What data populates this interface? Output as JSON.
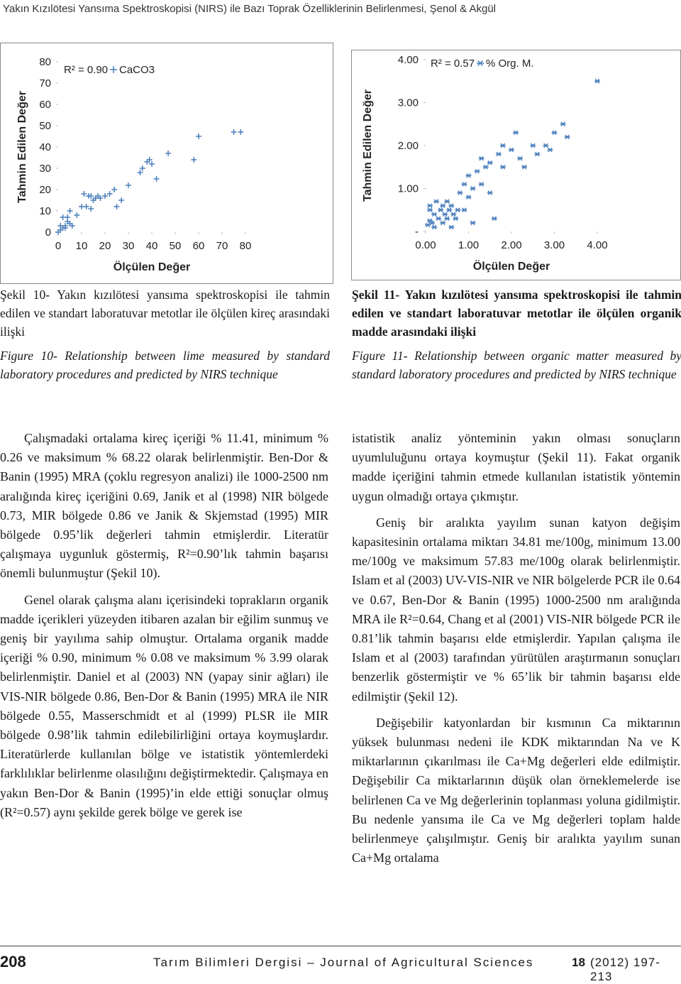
{
  "header": {
    "running_title": "Yakın Kızılötesi Yansıma Spektroskopisi (NIRS) ile Bazı Toprak Özelliklerinin Belirlenmesi, Şenol & Akgül"
  },
  "chart_data": [
    {
      "type": "scatter",
      "x_label": "Ölçülen Değer",
      "y_label": "Tahmin Edilen Değer",
      "annotation": "R² = 0.90",
      "xlim": [
        0,
        80
      ],
      "xticks": [
        0,
        10,
        20,
        30,
        40,
        50,
        60,
        70,
        80
      ],
      "ylim": [
        0,
        80
      ],
      "yticks": [
        0,
        10,
        20,
        30,
        40,
        50,
        60,
        70,
        80
      ],
      "grid": false,
      "series": [
        {
          "name": "CaCO3",
          "color": "#4a7ebb",
          "marker": "plus",
          "x": [
            0,
            1,
            2,
            3,
            4,
            2,
            5,
            6,
            3,
            1,
            8,
            5,
            4,
            10,
            11,
            13,
            14,
            15,
            16,
            12,
            14,
            17,
            18,
            20,
            22,
            25,
            27,
            24,
            30,
            35,
            36,
            38,
            39,
            40,
            42,
            47,
            58,
            60,
            75,
            78
          ],
          "y": [
            0,
            1,
            2,
            3,
            5,
            7,
            4,
            3,
            2,
            3,
            8,
            10,
            7,
            12,
            18,
            17,
            17,
            15,
            16,
            12,
            11,
            17,
            16,
            17,
            18,
            12,
            15,
            20,
            22,
            28,
            30,
            33,
            34,
            32,
            25,
            37,
            34,
            45,
            47,
            47
          ]
        }
      ]
    },
    {
      "type": "scatter",
      "x_label": "Ölçülen Değer",
      "y_label": "Tahmin Edilen Değer",
      "annotation": "R² = 0.57",
      "xlim": [
        0,
        4
      ],
      "xticks": [
        {
          "value": 0,
          "label": "0.00"
        },
        {
          "value": 1,
          "label": "1.00"
        },
        {
          "value": 2,
          "label": "2.00"
        },
        {
          "value": 3,
          "label": "3.00"
        },
        {
          "value": 4,
          "label": "4.00"
        }
      ],
      "ylim": [
        0,
        4
      ],
      "yticks": [
        {
          "value": 0,
          "label": "-"
        },
        {
          "value": 1,
          "label": "1.00"
        },
        {
          "value": 2,
          "label": "2.00"
        },
        {
          "value": 3,
          "label": "3.00"
        },
        {
          "value": 4,
          "label": "4.00"
        }
      ],
      "grid": false,
      "series": [
        {
          "name": "% Org. M.",
          "color": "#4a7ebb",
          "marker": "asterisk",
          "x": [
            0.1,
            0.1,
            0.15,
            0.2,
            0.2,
            0.25,
            0.3,
            0.35,
            0.4,
            0.4,
            0.45,
            0.5,
            0.5,
            0.55,
            0.6,
            0.6,
            0.65,
            0.7,
            0.75,
            0.8,
            0.9,
            0.9,
            1.0,
            1.0,
            1.1,
            1.1,
            1.2,
            1.3,
            1.3,
            1.4,
            1.5,
            1.5,
            1.6,
            1.7,
            1.8,
            1.8,
            2.0,
            2.1,
            2.2,
            2.3,
            2.5,
            2.6,
            2.8,
            2.9,
            3.0,
            3.2,
            3.3,
            4.0,
            0.05,
            0.1
          ],
          "y": [
            0.6,
            0.5,
            0.2,
            0.4,
            0.1,
            0.7,
            0.3,
            0.5,
            0.6,
            0.2,
            0.4,
            0.3,
            0.7,
            0.5,
            0.1,
            0.6,
            0.4,
            0.3,
            0.5,
            0.9,
            1.1,
            0.5,
            0.8,
            1.3,
            1.0,
            0.2,
            1.4,
            1.7,
            1.1,
            1.5,
            1.6,
            0.9,
            0.3,
            1.8,
            1.5,
            2.0,
            1.9,
            2.3,
            1.7,
            1.5,
            2.0,
            1.8,
            2.0,
            1.9,
            2.3,
            2.5,
            2.2,
            3.5,
            0.15,
            0.25
          ]
        }
      ]
    }
  ],
  "captions": [
    {
      "tr": "Şekil 10- Yakın kızılötesi yansıma spektroskopisi ile tahmin edilen ve standart laboratuvar metotlar ile ölçülen kireç arasındaki ilişki",
      "en": "Figure 10- Relationship between lime measured by standard laboratory procedures and predicted by NIRS technique"
    },
    {
      "tr": "Şekil 11- Yakın kızılötesi yansıma spektroskopisi ile tahmin edilen ve standart laboratuvar metotlar ile ölçülen organik madde arasındaki ilişki",
      "en": "Figure 11- Relationship between organic matter measured by standard laboratory procedures and predicted by NIRS technique"
    }
  ],
  "body": {
    "left": [
      "Çalışmadaki ortalama kireç içeriği % 11.41, minimum % 0.26 ve maksimum % 68.22 olarak belirlenmiştir. Ben-Dor & Banin (1995) MRA (çoklu regresyon analizi) ile 1000-2500 nm aralığında kireç içeriğini 0.69, Janik et al (1998) NIR bölgede 0.73, MIR bölgede 0.86 ve Janik & Skjemstad (1995) MIR bölgede 0.95’lik değerleri tahmin etmişlerdir. Literatür çalışmaya uygunluk göstermiş, R²=0.90’lık tahmin başarısı önemli bulunmuştur (Şekil 10).",
      "Genel olarak çalışma alanı içerisindeki toprakların organik madde içerikleri yüzeyden itibaren azalan bir eğilim sunmuş ve geniş bir yayılıma sahip olmuştur. Ortalama organik madde içeriği % 0.90, minimum % 0.08 ve maksimum % 3.99 olarak belirlenmiştir. Daniel et al (2003) NN (yapay sinir ağları) ile VIS-NIR bölgede 0.86, Ben-Dor & Banin (1995) MRA ile NIR bölgede 0.55, Masserschmidt et al (1999) PLSR ile MIR bölgede 0.98’lik tahmin edilebilirliğini ortaya koymuşlardır. Literatürlerde kullanılan bölge ve istatistik yöntemlerdeki farklılıklar belirlenme olasılığını değiştirmektedir. Çalışmaya en yakın Ben-Dor & Banin (1995)’in elde ettiği sonuçlar olmuş (R²=0.57) aynı şekilde gerek bölge ve gerek ise"
    ],
    "right": [
      "istatistik analiz yönteminin yakın olması sonuçların uyumluluğunu ortaya koymuştur (Şekil 11). Fakat organik madde içeriğini tahmin etmede kullanılan istatistik yöntemin uygun olmadığı ortaya çıkmıştır.",
      "Geniş bir aralıkta yayılım sunan katyon değişim kapasitesinin ortalama miktarı 34.81 me/100g, minimum 13.00 me/100g ve maksimum 57.83 me/100g olarak belirlenmiştir. Islam et al (2003) UV-VIS-NIR ve NIR bölgelerde PCR ile 0.64 ve 0.67, Ben-Dor & Banin (1995) 1000-2500 nm aralığında MRA ile R²=0.64, Chang et al (2001) VIS-NIR bölgede PCR ile 0.81’lik tahmin başarısı elde etmişlerdir. Yapılan çalışma ile Islam et al (2003) tarafından yürütülen araştırmanın sonuçları benzerlik göstermiştir ve % 65’lik bir tahmin başarısı elde edilmiştir (Şekil 12).",
      "Değişebilir katyonlardan bir kısmının Ca miktarının yüksek bulunması nedeni ile KDK miktarından Na ve K miktarlarının çıkarılması ile Ca+Mg değerleri elde edilmiştir. Değişebilir Ca miktarlarının düşük olan örneklemelerde ise belirlenen Ca ve Mg değerlerinin toplanması yoluna gidilmiştir. Bu nedenle yansıma ile Ca ve Mg değerleri toplam halde belirlenmeye çalışılmıştır. Geniş bir aralıkta yayılım sunan Ca+Mg ortalama"
    ]
  },
  "footer": {
    "page_number": "208",
    "journal": "Tarım Bilimleri Dergisi – Journal of Agricultural Sciences",
    "volume": "18",
    "pages": "(2012) 197-213"
  }
}
